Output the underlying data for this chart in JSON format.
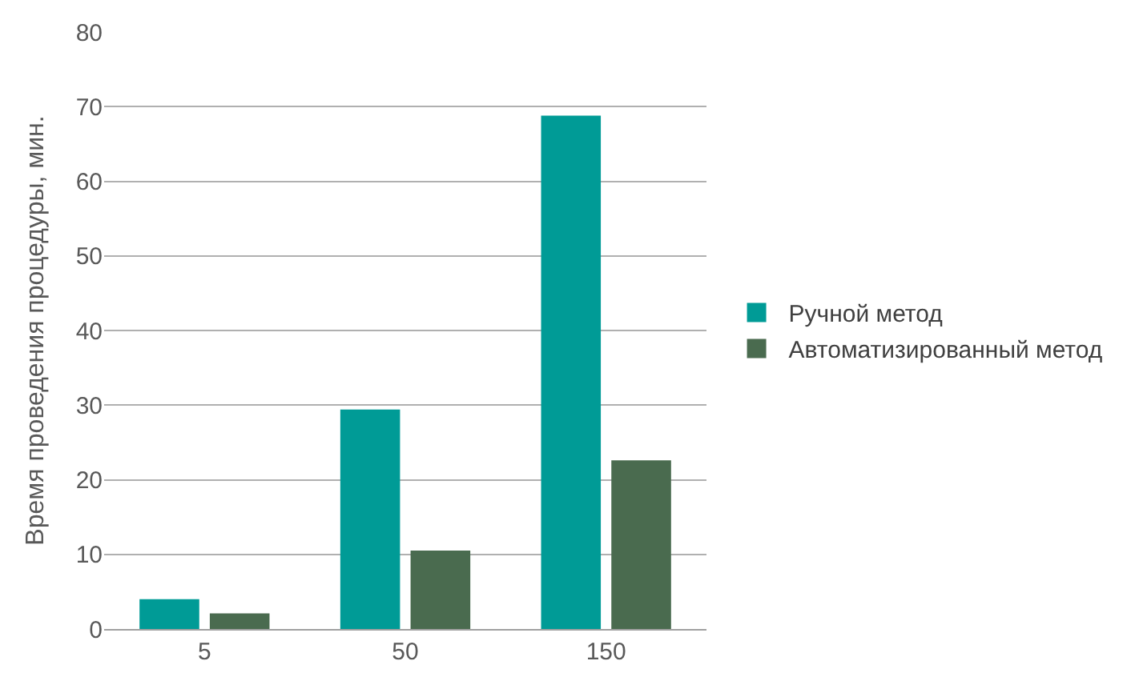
{
  "chart_data": {
    "type": "bar",
    "ylabel": "Время проведения процедуры, мин.",
    "categories": [
      "5",
      "50",
      "150"
    ],
    "series": [
      {
        "name": "Ручной метод",
        "color": "#009b96",
        "values": [
          4.0,
          29.4,
          68.8
        ]
      },
      {
        "name": "Автоматизированный метод",
        "color": "#4a6b4f",
        "values": [
          2.1,
          10.5,
          22.6
        ]
      }
    ],
    "ylim": [
      0,
      80
    ],
    "yticks": [
      0,
      10,
      20,
      30,
      40,
      50,
      60,
      70,
      80
    ],
    "grid": "y",
    "legend": "right"
  }
}
